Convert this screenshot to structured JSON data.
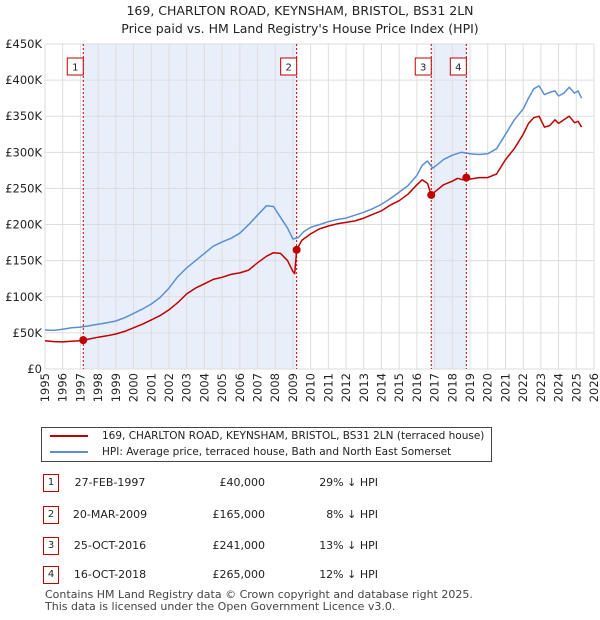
{
  "title_line1": "169, CHARLTON ROAD, KEYNSHAM, BRISTOL, BS31 2LN",
  "title_line2": "Price paid vs. HM Land Registry's House Price Index (HPI)",
  "colors": {
    "price": "#c00000",
    "hpi": "#5b8fd4",
    "shade": "#e8eefa",
    "grid": "#dddddd"
  },
  "chart_data": {
    "type": "line",
    "title": "Price paid vs. HM Land Registry's House Price Index (HPI)",
    "xlabel": "",
    "ylabel": "",
    "xlim": [
      1995,
      2026
    ],
    "ylim": [
      0,
      450000
    ],
    "x_ticks": [
      "1995",
      "1996",
      "1997",
      "1998",
      "1999",
      "2000",
      "2001",
      "2002",
      "2003",
      "2004",
      "2005",
      "2006",
      "2007",
      "2008",
      "2009",
      "2010",
      "2011",
      "2012",
      "2013",
      "2014",
      "2015",
      "2016",
      "2017",
      "2018",
      "2019",
      "2020",
      "2021",
      "2022",
      "2023",
      "2024",
      "2025",
      "2026"
    ],
    "y_ticks": [
      {
        "value": 0,
        "label": "£0"
      },
      {
        "value": 50000,
        "label": "£50K"
      },
      {
        "value": 100000,
        "label": "£100K"
      },
      {
        "value": 150000,
        "label": "£150K"
      },
      {
        "value": 200000,
        "label": "£200K"
      },
      {
        "value": 250000,
        "label": "£250K"
      },
      {
        "value": 300000,
        "label": "£300K"
      },
      {
        "value": 350000,
        "label": "£350K"
      },
      {
        "value": 400000,
        "label": "£400K"
      },
      {
        "value": 450000,
        "label": "£450K"
      }
    ],
    "shaded_ranges": [
      [
        1997.16,
        2009.21
      ],
      [
        2016.81,
        2018.79
      ]
    ],
    "series": [
      {
        "name": "169, CHARLTON ROAD, KEYNSHAM, BRISTOL, BS31 2LN (terraced house)",
        "color": "#c00000",
        "x": [
          1995.0,
          1995.5,
          1996.0,
          1996.5,
          1997.0,
          1997.16,
          1997.5,
          1998.0,
          1998.5,
          1999.0,
          1999.5,
          2000.0,
          2000.5,
          2001.0,
          2001.5,
          2002.0,
          2002.5,
          2003.0,
          2003.5,
          2004.0,
          2004.5,
          2005.0,
          2005.5,
          2006.0,
          2006.5,
          2007.0,
          2007.5,
          2007.9,
          2008.3,
          2008.7,
          2009.0,
          2009.1,
          2009.21,
          2009.5,
          2010.0,
          2010.5,
          2011.0,
          2011.5,
          2012.0,
          2012.5,
          2013.0,
          2013.5,
          2014.0,
          2014.5,
          2015.0,
          2015.5,
          2016.0,
          2016.3,
          2016.6,
          2016.81,
          2017.0,
          2017.5,
          2018.0,
          2018.3,
          2018.6,
          2018.79,
          2019.0,
          2019.5,
          2020.0,
          2020.5,
          2021.0,
          2021.5,
          2022.0,
          2022.3,
          2022.6,
          2022.9,
          2023.2,
          2023.5,
          2023.8,
          2024.0,
          2024.3,
          2024.6,
          2024.9,
          2025.1,
          2025.3
        ],
        "values": [
          39000,
          38000,
          37500,
          38500,
          39000,
          40000,
          41500,
          44000,
          46000,
          48500,
          52000,
          57000,
          62000,
          68000,
          74000,
          82000,
          92000,
          104000,
          112000,
          118000,
          124000,
          127000,
          131000,
          133000,
          137000,
          147000,
          156000,
          161000,
          160000,
          150000,
          135000,
          132000,
          165000,
          178000,
          187000,
          194000,
          198000,
          201000,
          203000,
          205000,
          209000,
          214000,
          219000,
          227000,
          233000,
          242000,
          255000,
          262000,
          257000,
          241000,
          245000,
          255000,
          260000,
          264000,
          262000,
          265000,
          263000,
          265000,
          265000,
          270000,
          290000,
          305000,
          325000,
          340000,
          348000,
          350000,
          335000,
          337000,
          345000,
          340000,
          345000,
          350000,
          341000,
          343000,
          335000
        ]
      },
      {
        "name": "HPI: Average price, terraced house, Bath and North East Somerset",
        "color": "#5b8fd4",
        "x": [
          1995.0,
          1995.5,
          1996.0,
          1996.5,
          1997.0,
          1997.5,
          1998.0,
          1998.5,
          1999.0,
          1999.5,
          2000.0,
          2000.5,
          2001.0,
          2001.5,
          2002.0,
          2002.5,
          2003.0,
          2003.5,
          2004.0,
          2004.5,
          2005.0,
          2005.5,
          2006.0,
          2006.5,
          2007.0,
          2007.5,
          2007.9,
          2008.3,
          2008.7,
          2009.0,
          2009.3,
          2009.6,
          2010.0,
          2010.5,
          2011.0,
          2011.5,
          2012.0,
          2012.5,
          2013.0,
          2013.5,
          2014.0,
          2014.5,
          2015.0,
          2015.5,
          2016.0,
          2016.3,
          2016.6,
          2016.9,
          2017.2,
          2017.5,
          2018.0,
          2018.5,
          2019.0,
          2019.5,
          2020.0,
          2020.5,
          2021.0,
          2021.5,
          2022.0,
          2022.3,
          2022.6,
          2022.9,
          2023.2,
          2023.5,
          2023.8,
          2024.0,
          2024.3,
          2024.6,
          2024.9,
          2025.1,
          2025.3
        ],
        "values": [
          54000,
          53500,
          55000,
          57000,
          58000,
          60000,
          62000,
          64000,
          66500,
          71000,
          77000,
          83000,
          90000,
          99000,
          112000,
          128000,
          140000,
          150000,
          160000,
          170000,
          176000,
          181000,
          188000,
          200000,
          213000,
          226000,
          225000,
          210000,
          195000,
          180000,
          182000,
          190000,
          196000,
          200000,
          204000,
          207000,
          209000,
          213000,
          217000,
          222000,
          228000,
          236000,
          245000,
          254000,
          268000,
          282000,
          288000,
          278000,
          284000,
          290000,
          296000,
          300000,
          298000,
          297000,
          298000,
          305000,
          325000,
          345000,
          360000,
          375000,
          388000,
          392000,
          380000,
          383000,
          385000,
          378000,
          382000,
          390000,
          382000,
          385000,
          375000
        ]
      }
    ],
    "markers": [
      {
        "label": "1",
        "x": 1997.16,
        "value": 40000
      },
      {
        "label": "2",
        "x": 2009.21,
        "value": 165000
      },
      {
        "label": "3",
        "x": 2016.81,
        "value": 241000
      },
      {
        "label": "4",
        "x": 2018.79,
        "value": 265000
      }
    ]
  },
  "legend": {
    "price_label": "169, CHARLTON ROAD, KEYNSHAM, BRISTOL, BS31 2LN (terraced house)",
    "hpi_label": "HPI: Average price, terraced house, Bath and North East Somerset"
  },
  "transactions": [
    {
      "num": "1",
      "date": "27-FEB-1997",
      "price": "£40,000",
      "hpi": "29% ↓ HPI"
    },
    {
      "num": "2",
      "date": "20-MAR-2009",
      "price": "£165,000",
      "hpi": "8% ↓ HPI"
    },
    {
      "num": "3",
      "date": "25-OCT-2016",
      "price": "£241,000",
      "hpi": "13% ↓ HPI"
    },
    {
      "num": "4",
      "date": "16-OCT-2018",
      "price": "£265,000",
      "hpi": "12% ↓ HPI"
    }
  ],
  "footer": {
    "line1": "Contains HM Land Registry data © Crown copyright and database right 2025.",
    "line2": "This data is licensed under the Open Government Licence v3.0."
  }
}
